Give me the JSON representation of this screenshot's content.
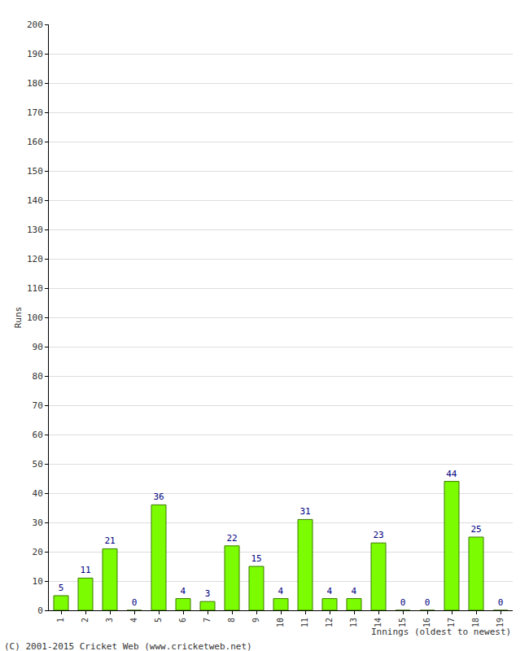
{
  "chart_data": {
    "type": "bar",
    "y_label": "Runs",
    "x_label": "Innings (oldest to newest)",
    "annotations": [
      "(C) 2001-2015 Cricket Web (www.cricketweb.net)"
    ],
    "categories": [
      "1",
      "2",
      "3",
      "4",
      "5",
      "6",
      "7",
      "8",
      "9",
      "10",
      "11",
      "12",
      "13",
      "14",
      "15",
      "16",
      "17",
      "18",
      "19"
    ],
    "values": [
      5,
      11,
      21,
      0,
      36,
      4,
      3,
      22,
      15,
      4,
      31,
      4,
      4,
      23,
      0,
      0,
      44,
      25,
      0
    ],
    "color": "#7cfc00",
    "ylim": [
      0,
      200
    ],
    "yticks": [
      0,
      10,
      20,
      30,
      40,
      50,
      60,
      70,
      80,
      90,
      100,
      110,
      120,
      130,
      140,
      150,
      160,
      170,
      180,
      190,
      200
    ],
    "grid": true,
    "data_labels": true
  }
}
